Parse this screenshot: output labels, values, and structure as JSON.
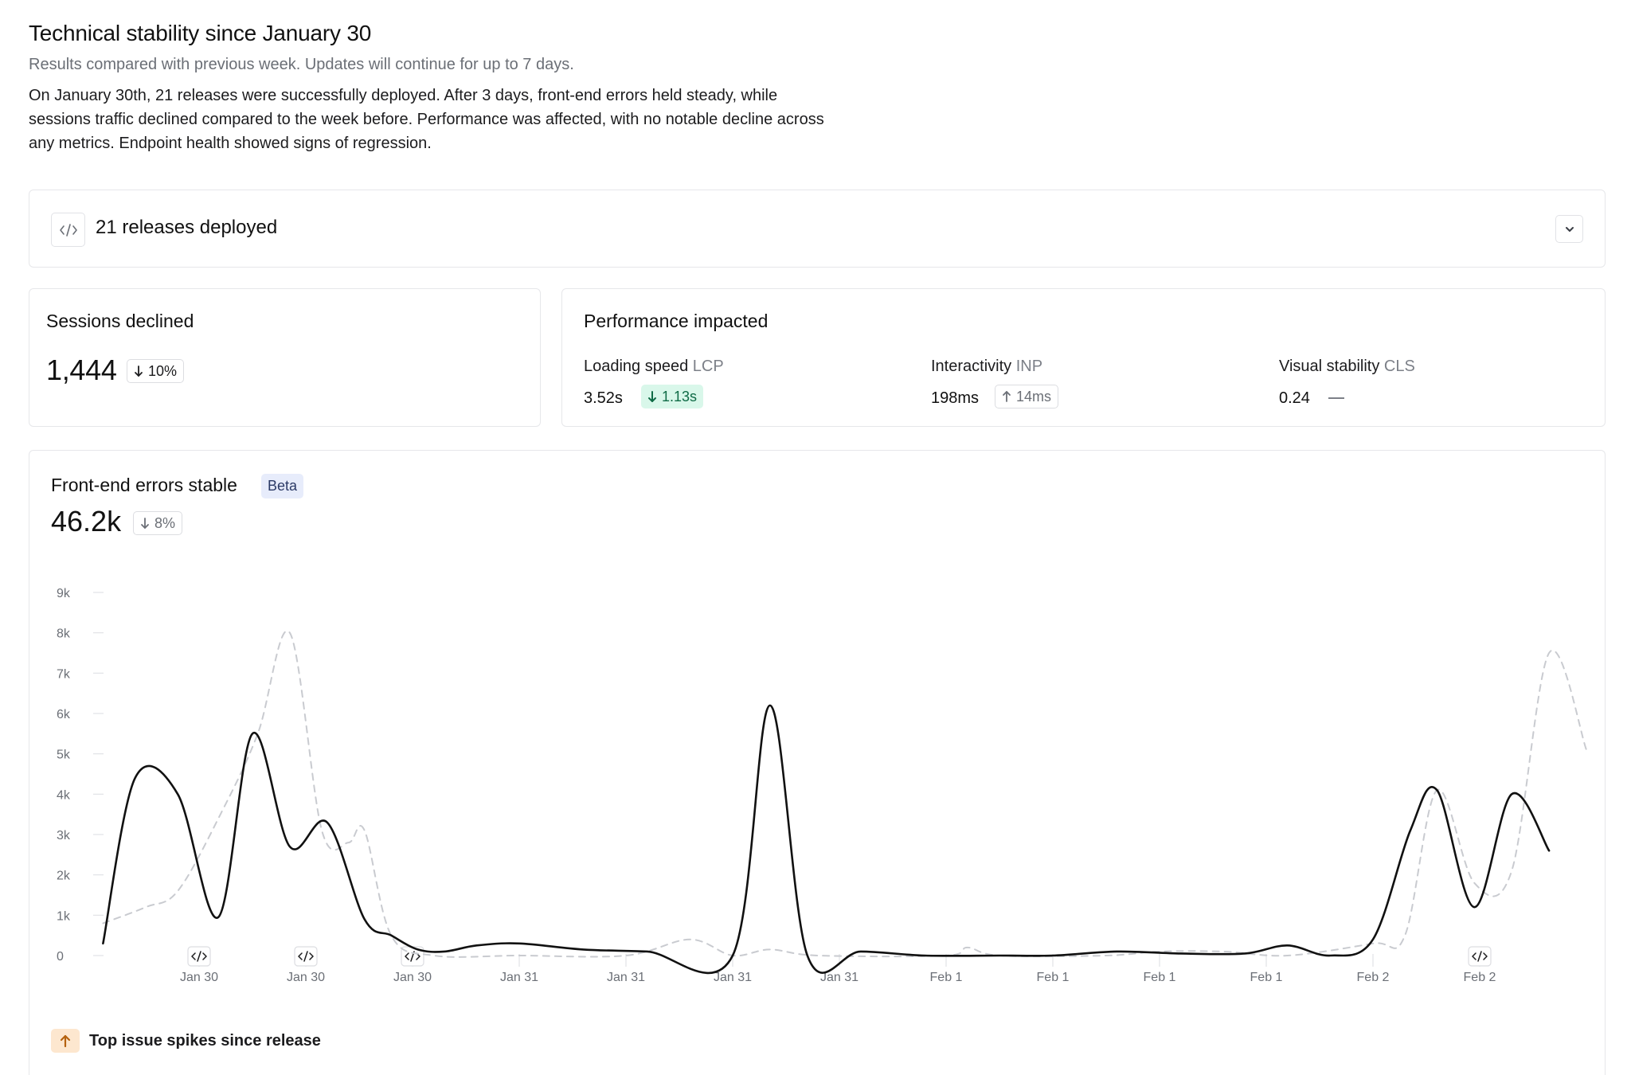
{
  "header": {
    "title": "Technical stability since January 30",
    "subtitle": "Results compared with previous week.  Updates will continue for up to 7 days.",
    "summary": "On January 30th, 21 releases were successfully deployed. After 3 days, front-end errors held steady, while sessions traffic declined compared to the week before. Performance was affected, with no notable decline across any metrics. Endpoint health showed signs of regression."
  },
  "releases": {
    "icon": "code-icon",
    "title": "21 releases deployed",
    "toggle_icon": "chevron-down-icon"
  },
  "sessions": {
    "title": "Sessions declined",
    "value": "1,444",
    "change": "10%",
    "change_direction": "down"
  },
  "performance": {
    "title": "Performance impacted",
    "metrics": [
      {
        "label": "Loading speed",
        "abbr": "LCP",
        "value": "3.52s",
        "change": "1.13s",
        "direction": "down",
        "style": "green"
      },
      {
        "label": "Interactivity",
        "abbr": "INP",
        "value": "198ms",
        "change": "14ms",
        "direction": "up",
        "style": "muted"
      },
      {
        "label": "Visual stability",
        "abbr": "CLS",
        "value": "0.24",
        "change": "",
        "direction": "none",
        "style": "none"
      }
    ]
  },
  "errors": {
    "title": "Front-end errors stable",
    "badge": "Beta",
    "value": "46.2k",
    "change": "8%",
    "change_direction": "down"
  },
  "top_issue": {
    "icon": "arrow-up-icon",
    "label": "Top issue spikes since release",
    "accent": "#fde7cf"
  },
  "colors": {
    "current_line": "#111111",
    "previous_line": "#c9cbd0",
    "green_chip_bg": "#d9f7ea",
    "green_chip_text": "#0f6b46",
    "beta_bg": "#e7ecfb"
  },
  "chart_data": {
    "type": "line",
    "ylim": [
      0,
      9000
    ],
    "y_ticks": [
      "0",
      "1k",
      "2k",
      "3k",
      "4k",
      "5k",
      "6k",
      "7k",
      "8k",
      "9k"
    ],
    "x_ticks": [
      "Jan 30",
      "Jan 30",
      "Jan 30",
      "Jan 31",
      "Jan 31",
      "Jan 31",
      "Jan 31",
      "Feb 1",
      "Feb 1",
      "Feb 1",
      "Feb 1",
      "Feb 2",
      "Feb 2"
    ],
    "release_marker_ticks": [
      0,
      1,
      2,
      12
    ],
    "grid": false,
    "legend": "none",
    "series": [
      {
        "style": "solid",
        "values": [
          [
            -0.9,
            300
          ],
          [
            -0.6,
            4400
          ],
          [
            -0.2,
            4000
          ],
          [
            0.18,
            950
          ],
          [
            0.5,
            5500
          ],
          [
            0.85,
            2700
          ],
          [
            1.2,
            3300
          ],
          [
            1.55,
            900
          ],
          [
            1.8,
            500
          ],
          [
            2.05,
            150
          ],
          [
            2.3,
            100
          ],
          [
            2.6,
            250
          ],
          [
            3.0,
            300
          ],
          [
            3.6,
            150
          ],
          [
            4.2,
            100
          ],
          [
            5.0,
            0
          ],
          [
            5.35,
            6200
          ],
          [
            5.7,
            0
          ],
          [
            6.2,
            100
          ],
          [
            6.8,
            0
          ],
          [
            7.5,
            0
          ],
          [
            8.0,
            0
          ],
          [
            8.6,
            100
          ],
          [
            9.2,
            50
          ],
          [
            9.8,
            50
          ],
          [
            10.2,
            250
          ],
          [
            10.6,
            0
          ],
          [
            11.0,
            400
          ],
          [
            11.35,
            3100
          ],
          [
            11.6,
            4100
          ],
          [
            11.95,
            1200
          ],
          [
            12.3,
            4000
          ],
          [
            12.65,
            2600
          ]
        ]
      },
      {
        "style": "dashed",
        "values": [
          [
            -0.9,
            800
          ],
          [
            -0.5,
            1200
          ],
          [
            -0.2,
            1600
          ],
          [
            0.2,
            3500
          ],
          [
            0.55,
            5500
          ],
          [
            0.85,
            8000
          ],
          [
            1.15,
            3100
          ],
          [
            1.4,
            2800
          ],
          [
            1.55,
            3100
          ],
          [
            1.8,
            500
          ],
          [
            2.2,
            0
          ],
          [
            3.0,
            0
          ],
          [
            4.0,
            0
          ],
          [
            4.6,
            400
          ],
          [
            5.0,
            0
          ],
          [
            5.35,
            150
          ],
          [
            5.8,
            0
          ],
          [
            7.0,
            0
          ],
          [
            7.2,
            200
          ],
          [
            7.5,
            0
          ],
          [
            8.5,
            0
          ],
          [
            9.0,
            100
          ],
          [
            9.6,
            100
          ],
          [
            10.2,
            0
          ],
          [
            11.0,
            300
          ],
          [
            11.3,
            500
          ],
          [
            11.6,
            4100
          ],
          [
            11.95,
            1800
          ],
          [
            12.3,
            2100
          ],
          [
            12.65,
            7500
          ],
          [
            13.0,
            5100
          ]
        ]
      }
    ]
  }
}
